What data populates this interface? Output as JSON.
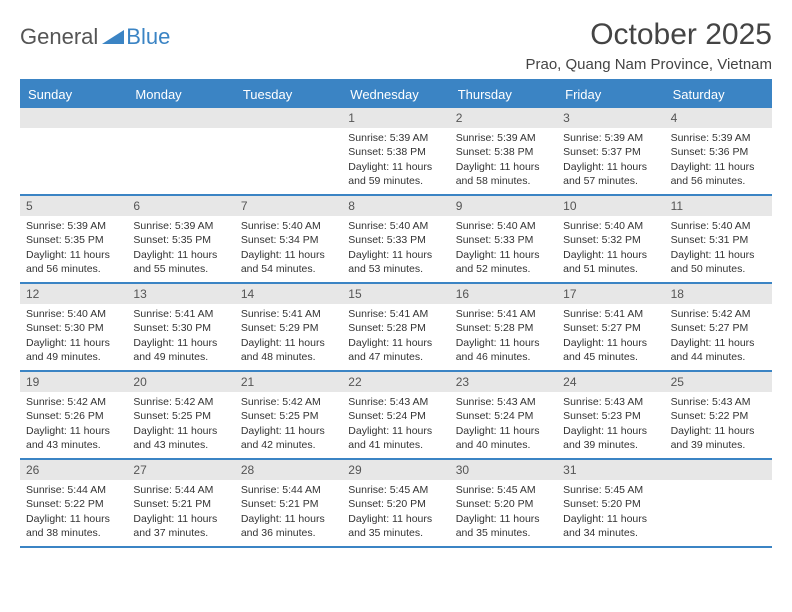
{
  "logo": {
    "text1": "General",
    "text2": "Blue"
  },
  "title": "October 2025",
  "location": "Prao, Quang Nam Province, Vietnam",
  "colors": {
    "accent": "#3b84c4",
    "header_bg": "#3b84c4",
    "header_text": "#ffffff",
    "daynum_bg": "#e7e7e7",
    "text": "#333333",
    "logo_gray": "#555555"
  },
  "day_names": [
    "Sunday",
    "Monday",
    "Tuesday",
    "Wednesday",
    "Thursday",
    "Friday",
    "Saturday"
  ],
  "weeks": [
    [
      null,
      null,
      null,
      {
        "n": "1",
        "sr": "5:39 AM",
        "ss": "5:38 PM",
        "dl": "11 hours and 59 minutes."
      },
      {
        "n": "2",
        "sr": "5:39 AM",
        "ss": "5:38 PM",
        "dl": "11 hours and 58 minutes."
      },
      {
        "n": "3",
        "sr": "5:39 AM",
        "ss": "5:37 PM",
        "dl": "11 hours and 57 minutes."
      },
      {
        "n": "4",
        "sr": "5:39 AM",
        "ss": "5:36 PM",
        "dl": "11 hours and 56 minutes."
      }
    ],
    [
      {
        "n": "5",
        "sr": "5:39 AM",
        "ss": "5:35 PM",
        "dl": "11 hours and 56 minutes."
      },
      {
        "n": "6",
        "sr": "5:39 AM",
        "ss": "5:35 PM",
        "dl": "11 hours and 55 minutes."
      },
      {
        "n": "7",
        "sr": "5:40 AM",
        "ss": "5:34 PM",
        "dl": "11 hours and 54 minutes."
      },
      {
        "n": "8",
        "sr": "5:40 AM",
        "ss": "5:33 PM",
        "dl": "11 hours and 53 minutes."
      },
      {
        "n": "9",
        "sr": "5:40 AM",
        "ss": "5:33 PM",
        "dl": "11 hours and 52 minutes."
      },
      {
        "n": "10",
        "sr": "5:40 AM",
        "ss": "5:32 PM",
        "dl": "11 hours and 51 minutes."
      },
      {
        "n": "11",
        "sr": "5:40 AM",
        "ss": "5:31 PM",
        "dl": "11 hours and 50 minutes."
      }
    ],
    [
      {
        "n": "12",
        "sr": "5:40 AM",
        "ss": "5:30 PM",
        "dl": "11 hours and 49 minutes."
      },
      {
        "n": "13",
        "sr": "5:41 AM",
        "ss": "5:30 PM",
        "dl": "11 hours and 49 minutes."
      },
      {
        "n": "14",
        "sr": "5:41 AM",
        "ss": "5:29 PM",
        "dl": "11 hours and 48 minutes."
      },
      {
        "n": "15",
        "sr": "5:41 AM",
        "ss": "5:28 PM",
        "dl": "11 hours and 47 minutes."
      },
      {
        "n": "16",
        "sr": "5:41 AM",
        "ss": "5:28 PM",
        "dl": "11 hours and 46 minutes."
      },
      {
        "n": "17",
        "sr": "5:41 AM",
        "ss": "5:27 PM",
        "dl": "11 hours and 45 minutes."
      },
      {
        "n": "18",
        "sr": "5:42 AM",
        "ss": "5:27 PM",
        "dl": "11 hours and 44 minutes."
      }
    ],
    [
      {
        "n": "19",
        "sr": "5:42 AM",
        "ss": "5:26 PM",
        "dl": "11 hours and 43 minutes."
      },
      {
        "n": "20",
        "sr": "5:42 AM",
        "ss": "5:25 PM",
        "dl": "11 hours and 43 minutes."
      },
      {
        "n": "21",
        "sr": "5:42 AM",
        "ss": "5:25 PM",
        "dl": "11 hours and 42 minutes."
      },
      {
        "n": "22",
        "sr": "5:43 AM",
        "ss": "5:24 PM",
        "dl": "11 hours and 41 minutes."
      },
      {
        "n": "23",
        "sr": "5:43 AM",
        "ss": "5:24 PM",
        "dl": "11 hours and 40 minutes."
      },
      {
        "n": "24",
        "sr": "5:43 AM",
        "ss": "5:23 PM",
        "dl": "11 hours and 39 minutes."
      },
      {
        "n": "25",
        "sr": "5:43 AM",
        "ss": "5:22 PM",
        "dl": "11 hours and 39 minutes."
      }
    ],
    [
      {
        "n": "26",
        "sr": "5:44 AM",
        "ss": "5:22 PM",
        "dl": "11 hours and 38 minutes."
      },
      {
        "n": "27",
        "sr": "5:44 AM",
        "ss": "5:21 PM",
        "dl": "11 hours and 37 minutes."
      },
      {
        "n": "28",
        "sr": "5:44 AM",
        "ss": "5:21 PM",
        "dl": "11 hours and 36 minutes."
      },
      {
        "n": "29",
        "sr": "5:45 AM",
        "ss": "5:20 PM",
        "dl": "11 hours and 35 minutes."
      },
      {
        "n": "30",
        "sr": "5:45 AM",
        "ss": "5:20 PM",
        "dl": "11 hours and 35 minutes."
      },
      {
        "n": "31",
        "sr": "5:45 AM",
        "ss": "5:20 PM",
        "dl": "11 hours and 34 minutes."
      },
      null
    ]
  ],
  "labels": {
    "sunrise": "Sunrise:",
    "sunset": "Sunset:",
    "daylight": "Daylight:"
  }
}
